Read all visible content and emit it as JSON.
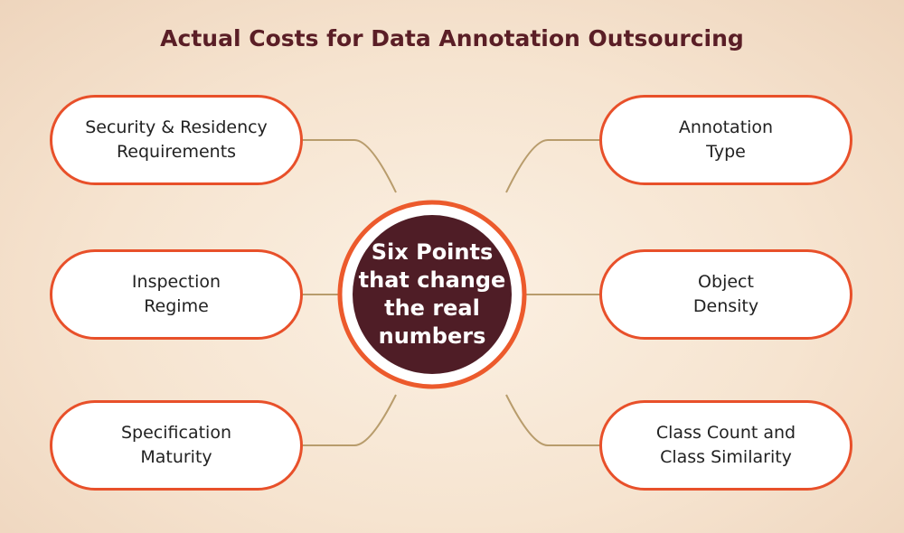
{
  "title": "Actual Costs for Data Annotation Outsourcing",
  "center": {
    "lines": [
      "Six Points",
      "that change",
      "the real",
      "numbers"
    ]
  },
  "nodes": [
    {
      "lines": [
        "Security & Residency",
        "Requirements"
      ]
    },
    {
      "lines": [
        "Inspection",
        "Regime"
      ]
    },
    {
      "lines": [
        "Specification",
        "Maturity"
      ]
    },
    {
      "lines": [
        "Annotation",
        "Type"
      ]
    },
    {
      "lines": [
        "Object",
        "Density"
      ]
    },
    {
      "lines": [
        "Class Count and",
        "Class Similarity"
      ]
    }
  ]
}
